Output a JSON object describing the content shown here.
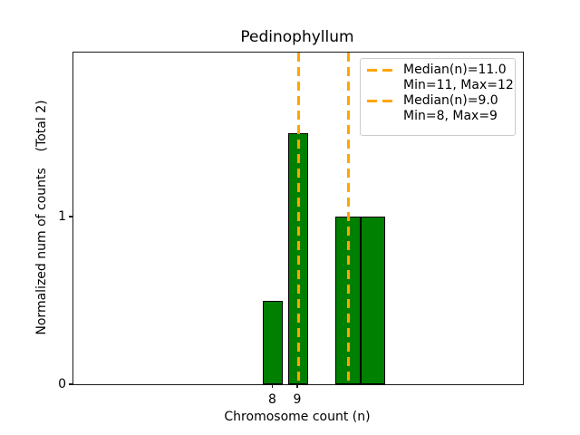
{
  "chart_data": {
    "type": "bar",
    "title": "Pedinophyllum",
    "xlabel": "Chromosome count (n)",
    "ylabel": "Normalized num of counts    (Total 2)",
    "xlim": [
      0,
      18
    ],
    "ylim": [
      0,
      1.98
    ],
    "xticks": [
      8,
      9
    ],
    "yticks": [
      0,
      1
    ],
    "grid": false,
    "bars": [
      {
        "x": 8,
        "height": 0.5,
        "width": 0.8
      },
      {
        "x": 9,
        "height": 1.5,
        "width": 0.8
      },
      {
        "x": 11,
        "height": 1.0,
        "width": 1.0
      },
      {
        "x": 12,
        "height": 1.0,
        "width": 1.0
      }
    ],
    "bar_color": "#008000",
    "bar_edge_color": "#000000",
    "median_lines": [
      {
        "x": 11.0,
        "median": 11.0,
        "min": 11,
        "max": 12
      },
      {
        "x": 9.0,
        "median": 9.0,
        "min": 8,
        "max": 9
      }
    ],
    "median_line_color": "#FFA500",
    "legend": {
      "position": "upper right",
      "entries": [
        {
          "label": "Median(n)=11.0",
          "sublabel": "Min=11, Max=12"
        },
        {
          "label": "Median(n)=9.0",
          "sublabel": "Min=8, Max=9"
        }
      ]
    }
  }
}
